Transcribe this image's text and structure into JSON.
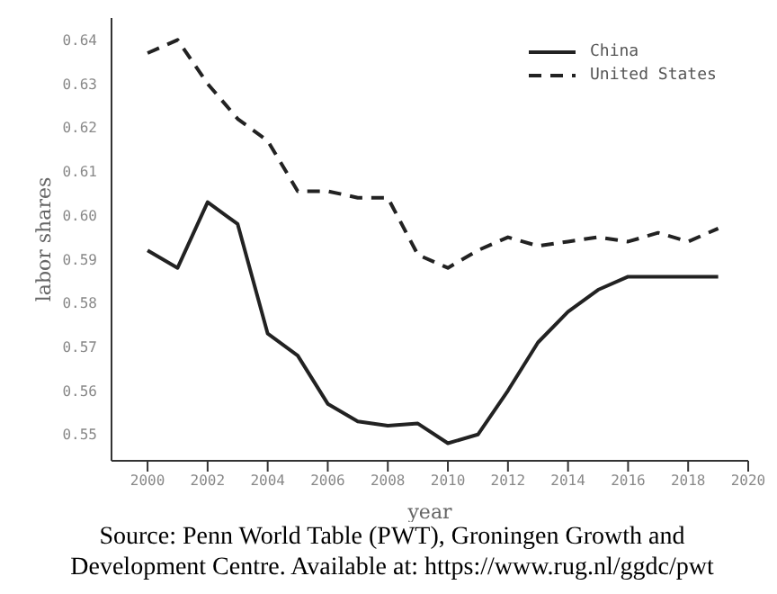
{
  "chart_data": {
    "type": "line",
    "xlabel": "year",
    "ylabel": "labor shares",
    "x": [
      2000,
      2001,
      2002,
      2003,
      2004,
      2005,
      2006,
      2007,
      2008,
      2009,
      2010,
      2011,
      2012,
      2013,
      2014,
      2015,
      2016,
      2017,
      2018,
      2019
    ],
    "series": [
      {
        "name": "China",
        "color": "#222222",
        "line_style": "solid",
        "values": [
          0.592,
          0.588,
          0.603,
          0.598,
          0.573,
          0.568,
          0.557,
          0.553,
          0.552,
          0.5525,
          0.548,
          0.55,
          0.56,
          0.571,
          0.578,
          0.583,
          0.586,
          0.586,
          0.586,
          0.586
        ]
      },
      {
        "name": "United States",
        "color": "#222222",
        "line_style": "dashed",
        "values": [
          0.637,
          0.64,
          0.63,
          0.622,
          0.617,
          0.6055,
          0.6055,
          0.604,
          0.604,
          0.591,
          0.588,
          0.592,
          0.595,
          0.593,
          0.594,
          0.595,
          0.594,
          0.596,
          0.594,
          0.597
        ]
      }
    ],
    "xlim": [
      1998.8,
      2020
    ],
    "xticks": [
      2000,
      2002,
      2004,
      2006,
      2008,
      2010,
      2012,
      2014,
      2016,
      2018,
      2020
    ],
    "ylim": [
      0.544,
      0.645
    ],
    "yticks": [
      0.55,
      0.56,
      0.57,
      0.58,
      0.59,
      {
        "value": 0.6,
        "label": "0.60"
      },
      0.61,
      0.62,
      0.63,
      0.64
    ],
    "grid": false,
    "legend": "top right",
    "marker": "none",
    "annotations": [
      "Source: Penn World Table (PWT), Groningen Growth and Development Centre. Available at: https://www.rug.nl/ggdc/pwt"
    ]
  }
}
